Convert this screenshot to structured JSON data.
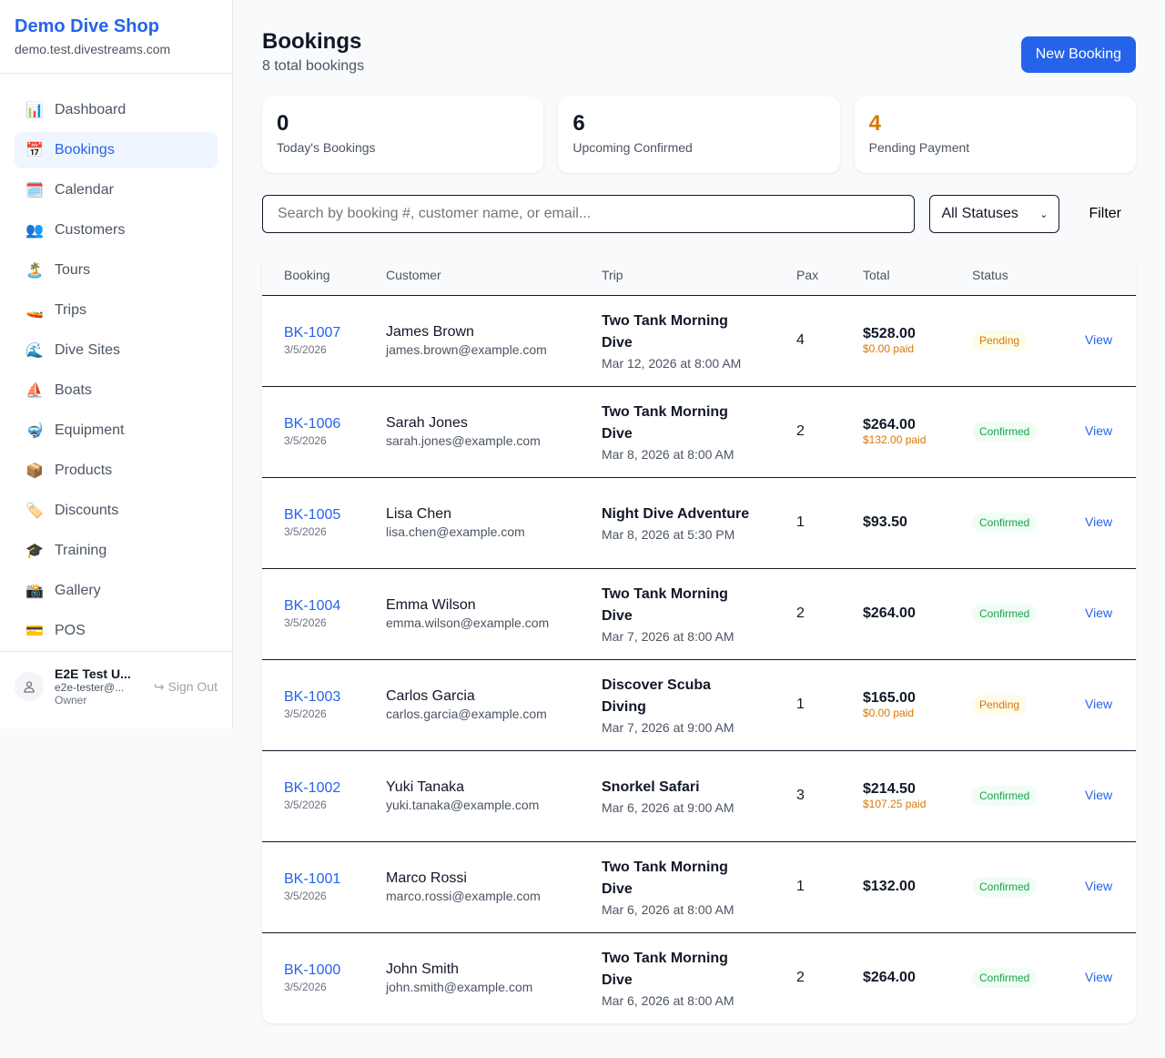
{
  "sidebar": {
    "shop_name": "Demo Dive Shop",
    "domain": "demo.test.divestreams.com",
    "items": [
      {
        "label": "Dashboard",
        "icon": "📊",
        "active": false
      },
      {
        "label": "Bookings",
        "icon": "📅",
        "active": true
      },
      {
        "label": "Calendar",
        "icon": "🗓️",
        "active": false
      },
      {
        "label": "Customers",
        "icon": "👥",
        "active": false
      },
      {
        "label": "Tours",
        "icon": "🏝️",
        "active": false
      },
      {
        "label": "Trips",
        "icon": "🚤",
        "active": false
      },
      {
        "label": "Dive Sites",
        "icon": "🌊",
        "active": false
      },
      {
        "label": "Boats",
        "icon": "⛵",
        "active": false
      },
      {
        "label": "Equipment",
        "icon": "🤿",
        "active": false
      },
      {
        "label": "Products",
        "icon": "📦",
        "active": false
      },
      {
        "label": "Discounts",
        "icon": "🏷️",
        "active": false
      },
      {
        "label": "Training",
        "icon": "🎓",
        "active": false
      },
      {
        "label": "Gallery",
        "icon": "📸",
        "active": false
      },
      {
        "label": "POS",
        "icon": "💳",
        "active": false
      }
    ],
    "user": {
      "name": "E2E Test U...",
      "email": "e2e-tester@...",
      "role": "Owner",
      "sign_out": "Sign Out"
    }
  },
  "header": {
    "title": "Bookings",
    "subtitle": "8 total bookings",
    "new_button": "New Booking"
  },
  "stats": [
    {
      "value": "0",
      "label": "Today's Bookings",
      "color": "#111827"
    },
    {
      "value": "6",
      "label": "Upcoming Confirmed",
      "color": "#111827"
    },
    {
      "value": "4",
      "label": "Pending Payment",
      "color": "#d97706"
    }
  ],
  "filters": {
    "search_placeholder": "Search by booking #, customer name, or email...",
    "status_selected": "All Statuses",
    "filter_button": "Filter"
  },
  "table": {
    "columns": [
      "Booking",
      "Customer",
      "Trip",
      "Pax",
      "Total",
      "Status",
      ""
    ],
    "rows": [
      {
        "id": "BK-1007",
        "date": "3/5/2026",
        "customer": "James Brown",
        "email": "james.brown@example.com",
        "trip": "Two Tank Morning Dive",
        "trip_time": "Mar 12, 2026 at 8:00 AM",
        "pax": "4",
        "total": "$528.00",
        "paid": "$0.00 paid",
        "status": "Pending",
        "action": "View"
      },
      {
        "id": "BK-1006",
        "date": "3/5/2026",
        "customer": "Sarah Jones",
        "email": "sarah.jones@example.com",
        "trip": "Two Tank Morning Dive",
        "trip_time": "Mar 8, 2026 at 8:00 AM",
        "pax": "2",
        "total": "$264.00",
        "paid": "$132.00 paid",
        "status": "Confirmed",
        "action": "View"
      },
      {
        "id": "BK-1005",
        "date": "3/5/2026",
        "customer": "Lisa Chen",
        "email": "lisa.chen@example.com",
        "trip": "Night Dive Adventure",
        "trip_time": "Mar 8, 2026 at 5:30 PM",
        "pax": "1",
        "total": "$93.50",
        "paid": "",
        "status": "Confirmed",
        "action": "View"
      },
      {
        "id": "BK-1004",
        "date": "3/5/2026",
        "customer": "Emma Wilson",
        "email": "emma.wilson@example.com",
        "trip": "Two Tank Morning Dive",
        "trip_time": "Mar 7, 2026 at 8:00 AM",
        "pax": "2",
        "total": "$264.00",
        "paid": "",
        "status": "Confirmed",
        "action": "View"
      },
      {
        "id": "BK-1003",
        "date": "3/5/2026",
        "customer": "Carlos Garcia",
        "email": "carlos.garcia@example.com",
        "trip": "Discover Scuba Diving",
        "trip_time": "Mar 7, 2026 at 9:00 AM",
        "pax": "1",
        "total": "$165.00",
        "paid": "$0.00 paid",
        "status": "Pending",
        "action": "View"
      },
      {
        "id": "BK-1002",
        "date": "3/5/2026",
        "customer": "Yuki Tanaka",
        "email": "yuki.tanaka@example.com",
        "trip": "Snorkel Safari",
        "trip_time": "Mar 6, 2026 at 9:00 AM",
        "pax": "3",
        "total": "$214.50",
        "paid": "$107.25 paid",
        "status": "Confirmed",
        "action": "View"
      },
      {
        "id": "BK-1001",
        "date": "3/5/2026",
        "customer": "Marco Rossi",
        "email": "marco.rossi@example.com",
        "trip": "Two Tank Morning Dive",
        "trip_time": "Mar 6, 2026 at 8:00 AM",
        "pax": "1",
        "total": "$132.00",
        "paid": "",
        "status": "Confirmed",
        "action": "View"
      },
      {
        "id": "BK-1000",
        "date": "3/5/2026",
        "customer": "John Smith",
        "email": "john.smith@example.com",
        "trip": "Two Tank Morning Dive",
        "trip_time": "Mar 6, 2026 at 8:00 AM",
        "pax": "2",
        "total": "$264.00",
        "paid": "",
        "status": "Confirmed",
        "action": "View"
      }
    ]
  }
}
